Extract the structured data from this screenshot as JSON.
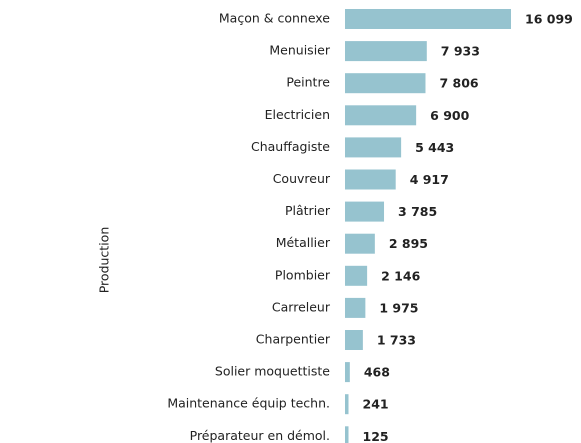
{
  "chart_data": {
    "type": "bar",
    "orientation": "horizontal",
    "y_label": "Production",
    "categories": [
      "Maçon & connexe",
      "Menuisier",
      "Peintre",
      "Electricien",
      "Chauffagiste",
      "Couvreur",
      "Plâtrier",
      "Métallier",
      "Plombier",
      "Carreleur",
      "Charpentier",
      "Solier moquettiste",
      "Maintenance équip techn.",
      "Préparateur en démol."
    ],
    "values": [
      16099,
      7933,
      7806,
      6900,
      5443,
      4917,
      3785,
      2895,
      2146,
      1975,
      1733,
      468,
      241,
      125
    ],
    "value_labels": [
      "16 099",
      "7 933",
      "7 806",
      "6 900",
      "5 443",
      "4 917",
      "3 785",
      "2 895",
      "2 146",
      "1 975",
      "1 733",
      "468",
      "241",
      "125"
    ],
    "color": "#96c3cf"
  }
}
